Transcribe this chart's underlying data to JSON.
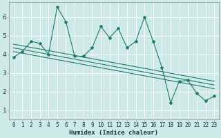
{
  "title": "",
  "xlabel": "Humidex (Indice chaleur)",
  "ylabel": "",
  "background_color": "#ceeae7",
  "grid_color": "#ffffff",
  "line_color": "#1a7a6e",
  "xlim": [
    -0.5,
    23.5
  ],
  "ylim": [
    0.5,
    6.8
  ],
  "xtick_labels": [
    "0",
    "1",
    "2",
    "3",
    "4",
    "5",
    "6",
    "7",
    "8",
    "9",
    "10",
    "11",
    "12",
    "13",
    "14",
    "15",
    "16",
    "17",
    "18",
    "19",
    "20",
    "21",
    "22",
    "23"
  ],
  "ytick_values": [
    1,
    2,
    3,
    4,
    5,
    6
  ],
  "series1_x": [
    0,
    1,
    2,
    3,
    4,
    5,
    6,
    7,
    8,
    9,
    10,
    11,
    12,
    13,
    14,
    15,
    16,
    17,
    18,
    19,
    20,
    21,
    22,
    23
  ],
  "series1_y": [
    3.85,
    4.15,
    4.7,
    4.6,
    4.0,
    6.55,
    5.75,
    3.9,
    3.9,
    4.35,
    5.5,
    4.9,
    5.4,
    4.35,
    4.7,
    6.0,
    4.7,
    3.3,
    1.4,
    2.55,
    2.6,
    1.9,
    1.5,
    1.75
  ],
  "reg_lines": [
    [
      [
        0,
        23
      ],
      [
        4.55,
        2.55
      ]
    ],
    [
      [
        0,
        23
      ],
      [
        4.35,
        2.35
      ]
    ],
    [
      [
        0,
        23
      ],
      [
        4.15,
        2.15
      ]
    ]
  ],
  "marker_size": 3.0,
  "linewidth": 0.8,
  "xlabel_fontsize": 6.5,
  "tick_fontsize": 5.5,
  "ytick_fontsize": 6.5
}
